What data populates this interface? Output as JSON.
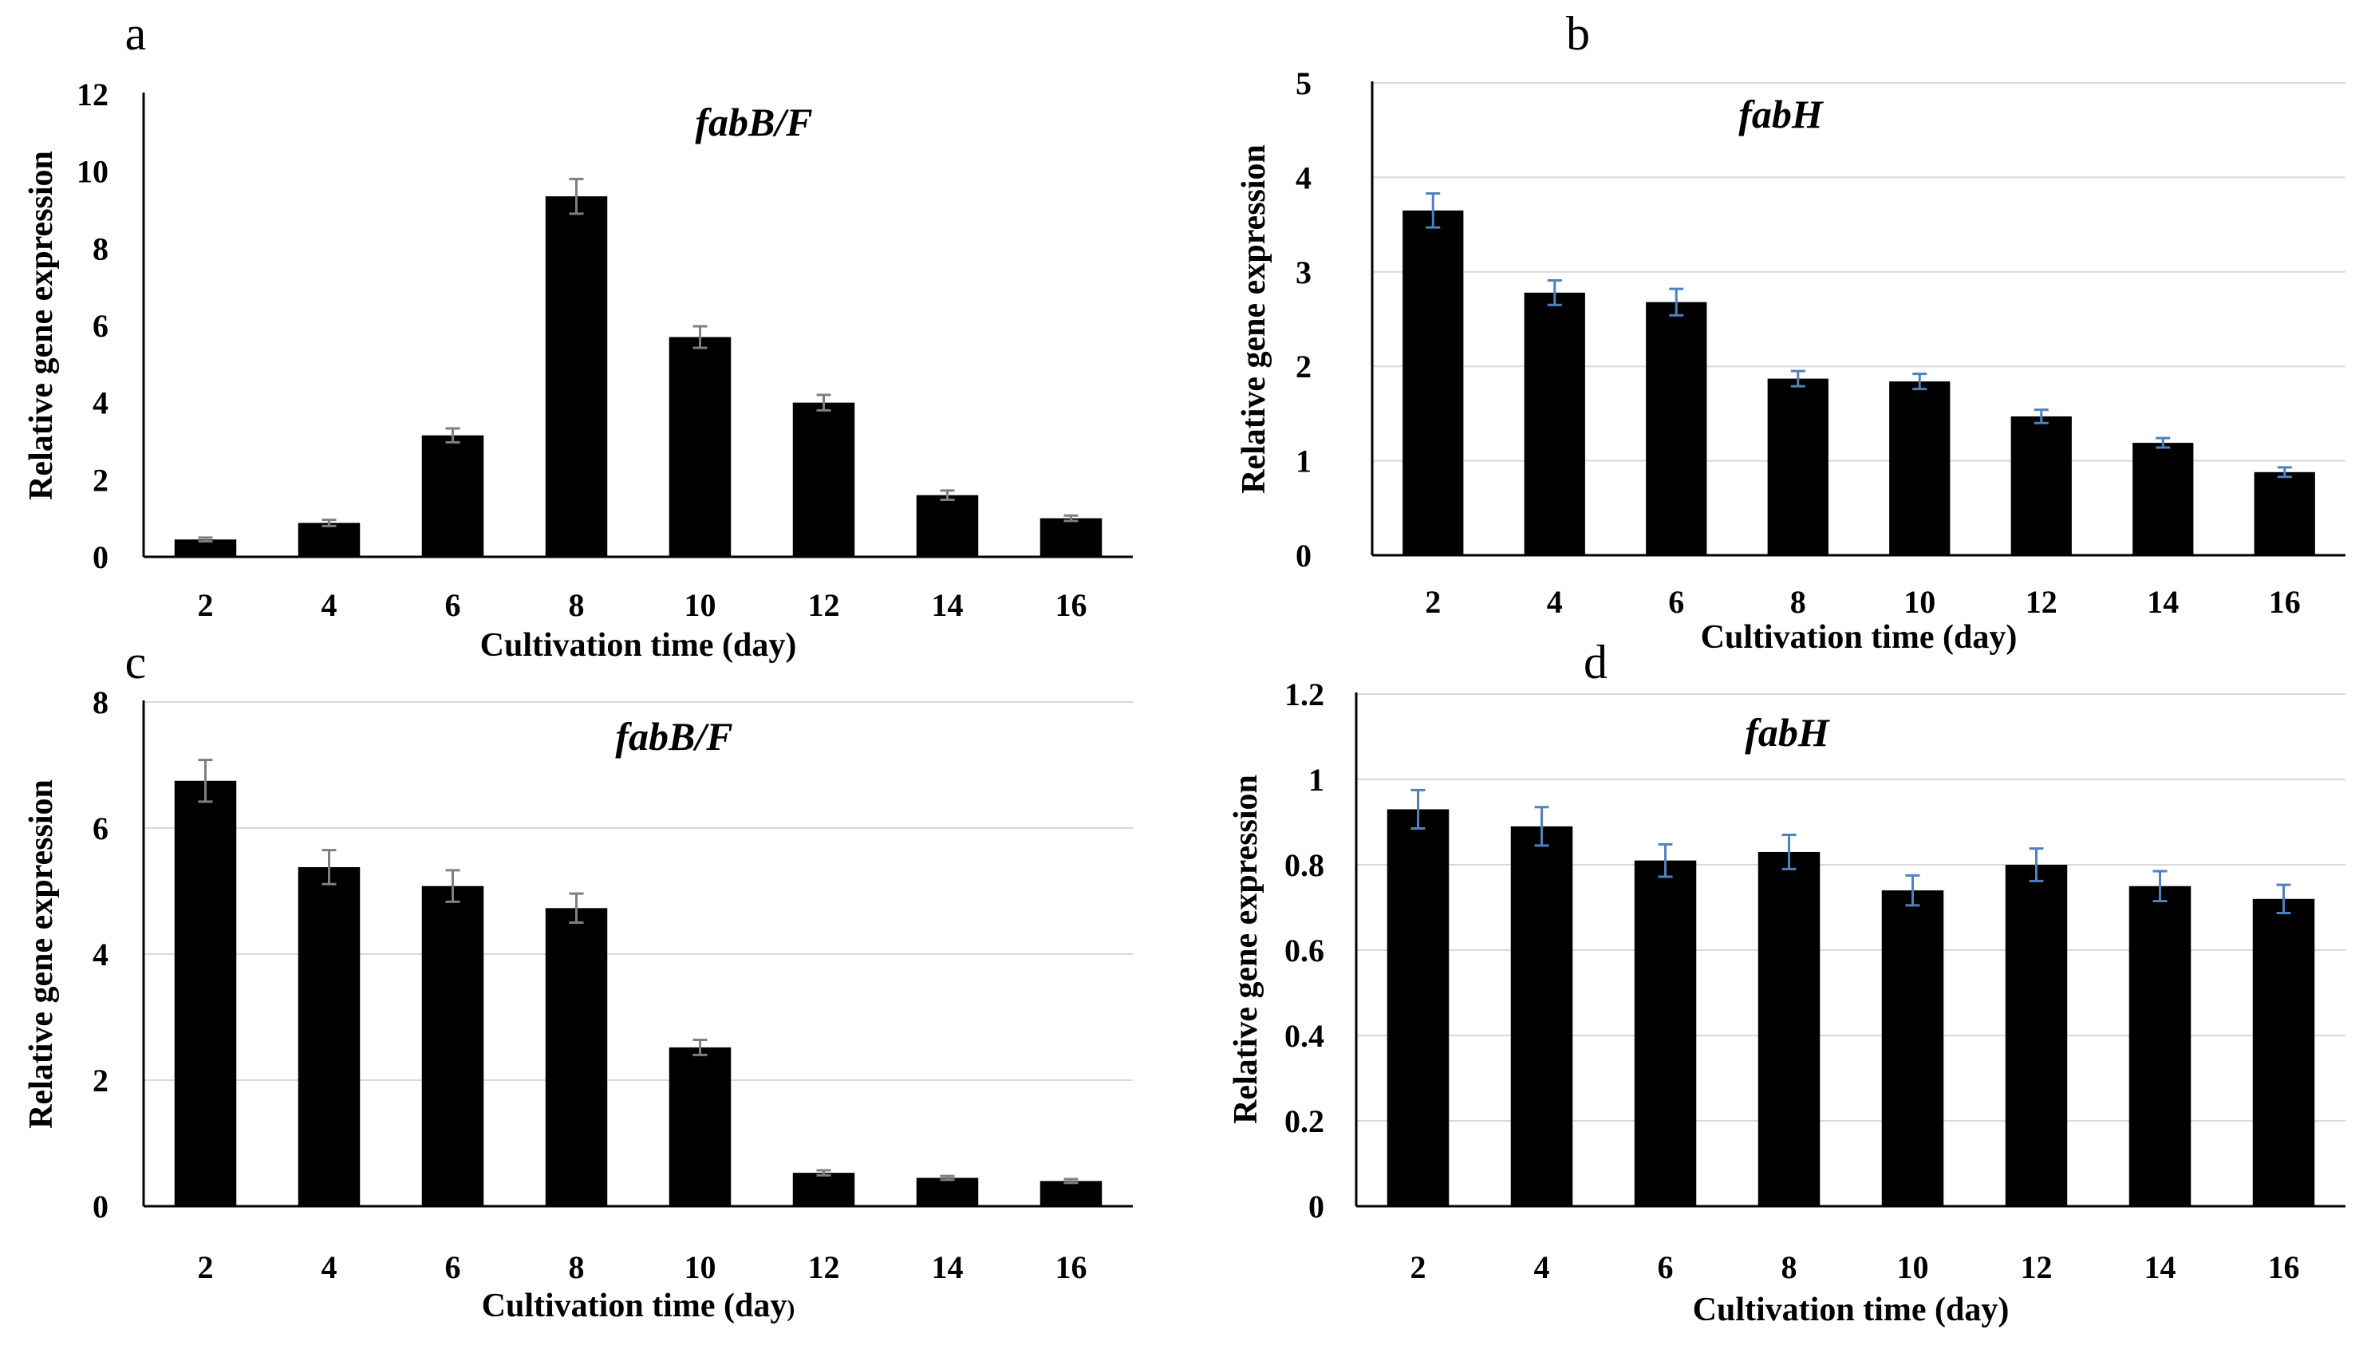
{
  "chart_data": [
    {
      "panel": "a",
      "type": "bar",
      "title": "fabB/F",
      "xlabel": "Cultivation time (day)",
      "ylabel": "Relative gene expression",
      "categories": [
        "2",
        "4",
        "6",
        "8",
        "10",
        "12",
        "14",
        "16"
      ],
      "values": [
        0.45,
        0.88,
        3.15,
        9.35,
        5.7,
        4.0,
        1.6,
        1.0
      ],
      "errors": [
        0.05,
        0.08,
        0.18,
        0.45,
        0.28,
        0.2,
        0.12,
        0.07
      ],
      "error_color": "#7f7f7f",
      "ylim": [
        0,
        12
      ],
      "yticks": [
        "0",
        "2",
        "4",
        "6",
        "8",
        "10",
        "12"
      ],
      "ytick_values": [
        0,
        2,
        4,
        6,
        8,
        10,
        12
      ],
      "grid": false
    },
    {
      "panel": "b",
      "type": "bar",
      "title": "fabH",
      "xlabel": "Cultivation time (day)",
      "ylabel": "Relative gene expression",
      "categories": [
        "2",
        "4",
        "6",
        "8",
        "10",
        "12",
        "14",
        "16"
      ],
      "values": [
        3.65,
        2.78,
        2.68,
        1.87,
        1.84,
        1.47,
        1.19,
        0.88
      ],
      "errors": [
        0.18,
        0.13,
        0.14,
        0.08,
        0.08,
        0.07,
        0.05,
        0.05
      ],
      "error_color": "#4f81bd",
      "ylim": [
        0,
        5
      ],
      "yticks": [
        "0",
        "1",
        "2",
        "3",
        "4",
        "5"
      ],
      "ytick_values": [
        0,
        1,
        2,
        3,
        4,
        5
      ],
      "grid": true
    },
    {
      "panel": "c",
      "type": "bar",
      "title": "fabB/F",
      "xlabel": "Cultivation time (day",
      "xlabel_suffix": ")",
      "ylabel": "Relative gene expression",
      "categories": [
        "2",
        "4",
        "6",
        "8",
        "10",
        "12",
        "14",
        "16"
      ],
      "values": [
        6.75,
        5.38,
        5.08,
        4.73,
        2.52,
        0.53,
        0.45,
        0.4
      ],
      "errors": [
        0.33,
        0.27,
        0.25,
        0.23,
        0.12,
        0.04,
        0.03,
        0.03
      ],
      "error_color": "#7f7f7f",
      "ylim": [
        0,
        8
      ],
      "yticks": [
        "0",
        "2",
        "4",
        "6",
        "8"
      ],
      "ytick_values": [
        0,
        2,
        4,
        6,
        8
      ],
      "grid": true
    },
    {
      "panel": "d",
      "type": "bar",
      "title": "fabH",
      "xlabel": "Cultivation time (day)",
      "ylabel": "Relative gene expression",
      "categories": [
        "2",
        "4",
        "6",
        "8",
        "10",
        "12",
        "14",
        "16"
      ],
      "values": [
        0.93,
        0.89,
        0.81,
        0.83,
        0.74,
        0.8,
        0.75,
        0.72
      ],
      "errors": [
        0.045,
        0.045,
        0.038,
        0.04,
        0.035,
        0.038,
        0.035,
        0.033
      ],
      "error_color": "#4f81bd",
      "ylim": [
        0,
        1.2
      ],
      "yticks": [
        "0",
        "0.2",
        "0.4",
        "0.6",
        "0.8",
        "1",
        "1.2"
      ],
      "ytick_values": [
        0,
        0.2,
        0.4,
        0.6,
        0.8,
        1.0,
        1.2
      ],
      "grid": true
    }
  ]
}
